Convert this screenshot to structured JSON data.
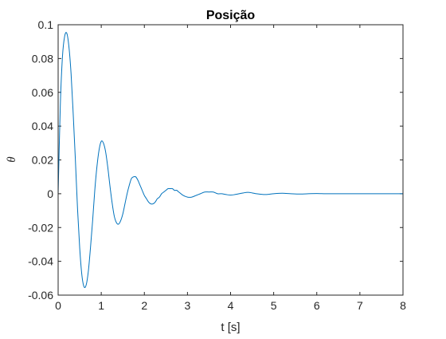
{
  "chart_data": {
    "type": "line",
    "title": "Posição",
    "xlabel": "t [s]",
    "ylabel": "θ",
    "xlim": [
      0,
      8
    ],
    "ylim": [
      -0.06,
      0.1
    ],
    "x_ticks": [
      0,
      1,
      2,
      3,
      4,
      5,
      6,
      7,
      8
    ],
    "x_tick_labels": [
      "0",
      "1",
      "2",
      "3",
      "4",
      "5",
      "6",
      "7",
      "8"
    ],
    "y_ticks": [
      -0.06,
      -0.04,
      -0.02,
      0,
      0.02,
      0.04,
      0.06,
      0.08,
      0.1
    ],
    "y_tick_labels": [
      "-0.06",
      "-0.04",
      "-0.02",
      "0",
      "0.02",
      "0.04",
      "0.06",
      "0.08",
      "0.1"
    ],
    "grid": false,
    "box": true,
    "series": [
      {
        "color": "#0072BD",
        "x": [
          0,
          0.05,
          0.1,
          0.15,
          0.2,
          0.25,
          0.3,
          0.35,
          0.4,
          0.45,
          0.5,
          0.55,
          0.6,
          0.65,
          0.7,
          0.75,
          0.8,
          0.85,
          0.9,
          0.95,
          1.0,
          1.05,
          1.1,
          1.15,
          1.2,
          1.25,
          1.3,
          1.35,
          1.4,
          1.45,
          1.5,
          1.55,
          1.6,
          1.65,
          1.7,
          1.75,
          1.8,
          1.85,
          1.9,
          1.95,
          2.0,
          2.05,
          2.1,
          2.15,
          2.2,
          2.25,
          2.3,
          2.35,
          2.4,
          2.45,
          2.5,
          2.55,
          2.6,
          2.65,
          2.7,
          2.75,
          2.8,
          2.9,
          3.0,
          3.1,
          3.2,
          3.3,
          3.4,
          3.5,
          3.6,
          3.7,
          3.8,
          3.9,
          4.0,
          4.1,
          4.2,
          4.3,
          4.4,
          4.5,
          4.6,
          4.7,
          4.8,
          4.9,
          5.0,
          5.2,
          5.4,
          5.6,
          5.8,
          6.0,
          6.2,
          6.4,
          6.6,
          6.8,
          7.0,
          7.5,
          8.0
        ],
        "y": [
          0,
          0.052,
          0.081,
          0.093,
          0.095,
          0.087,
          0.071,
          0.047,
          0.02,
          -0.009,
          -0.032,
          -0.048,
          -0.055,
          -0.054,
          -0.046,
          -0.032,
          -0.016,
          0.002,
          0.016,
          0.026,
          0.031,
          0.03,
          0.025,
          0.016,
          0.005,
          -0.005,
          -0.013,
          -0.017,
          -0.018,
          -0.016,
          -0.012,
          -0.006,
          0.0,
          0.005,
          0.009,
          0.01,
          0.01,
          0.008,
          0.005,
          0.002,
          -0.001,
          -0.003,
          -0.005,
          -0.006,
          -0.006,
          -0.005,
          -0.003,
          -0.002,
          0.0,
          0.001,
          0.002,
          0.003,
          0.003,
          0.003,
          0.002,
          0.002,
          0.001,
          -0.001,
          -0.002,
          -0.002,
          -0.001,
          0.0,
          0.001,
          0.001,
          0.001,
          0.0,
          0.0,
          -0.0005,
          -0.0008,
          -0.0005,
          0.0,
          0.0005,
          0.0008,
          0.0005,
          0.0,
          -0.0003,
          -0.0005,
          -0.0003,
          0.0,
          0.0003,
          0.0,
          -0.0002,
          0.0,
          0.0001,
          0.0,
          0.0,
          0.0,
          0.0,
          0.0,
          0.0,
          0.0
        ]
      }
    ]
  }
}
